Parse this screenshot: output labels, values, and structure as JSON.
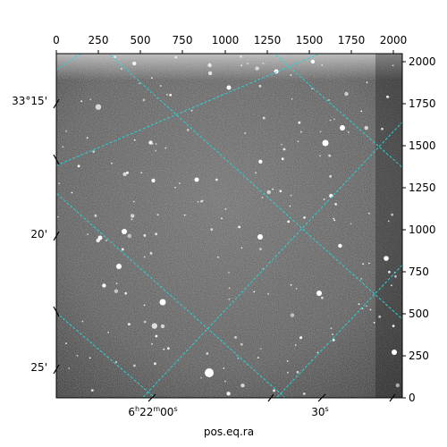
{
  "figure": {
    "xlabel": "pos.eq.ra",
    "top_ticks": [
      "0",
      "250",
      "500",
      "750",
      "1000",
      "1250",
      "1500",
      "1750",
      "2000"
    ],
    "right_ticks": [
      "0",
      "250",
      "500",
      "750",
      "1000",
      "1250",
      "1500",
      "1750",
      "2000"
    ],
    "left_ticks": [
      "33°15'",
      "20'",
      "25'"
    ],
    "bottom_ticks": [
      "6h22m00s",
      "30s"
    ],
    "bottom_tick_parts": [
      {
        "hours": "6",
        "h": "h",
        "minutes": "22",
        "m": "m",
        "seconds": "00",
        "s": "s"
      },
      {
        "seconds": "30",
        "s": "s"
      }
    ],
    "grid_color": "#29d3d3",
    "image_style": "grayscale star field"
  }
}
